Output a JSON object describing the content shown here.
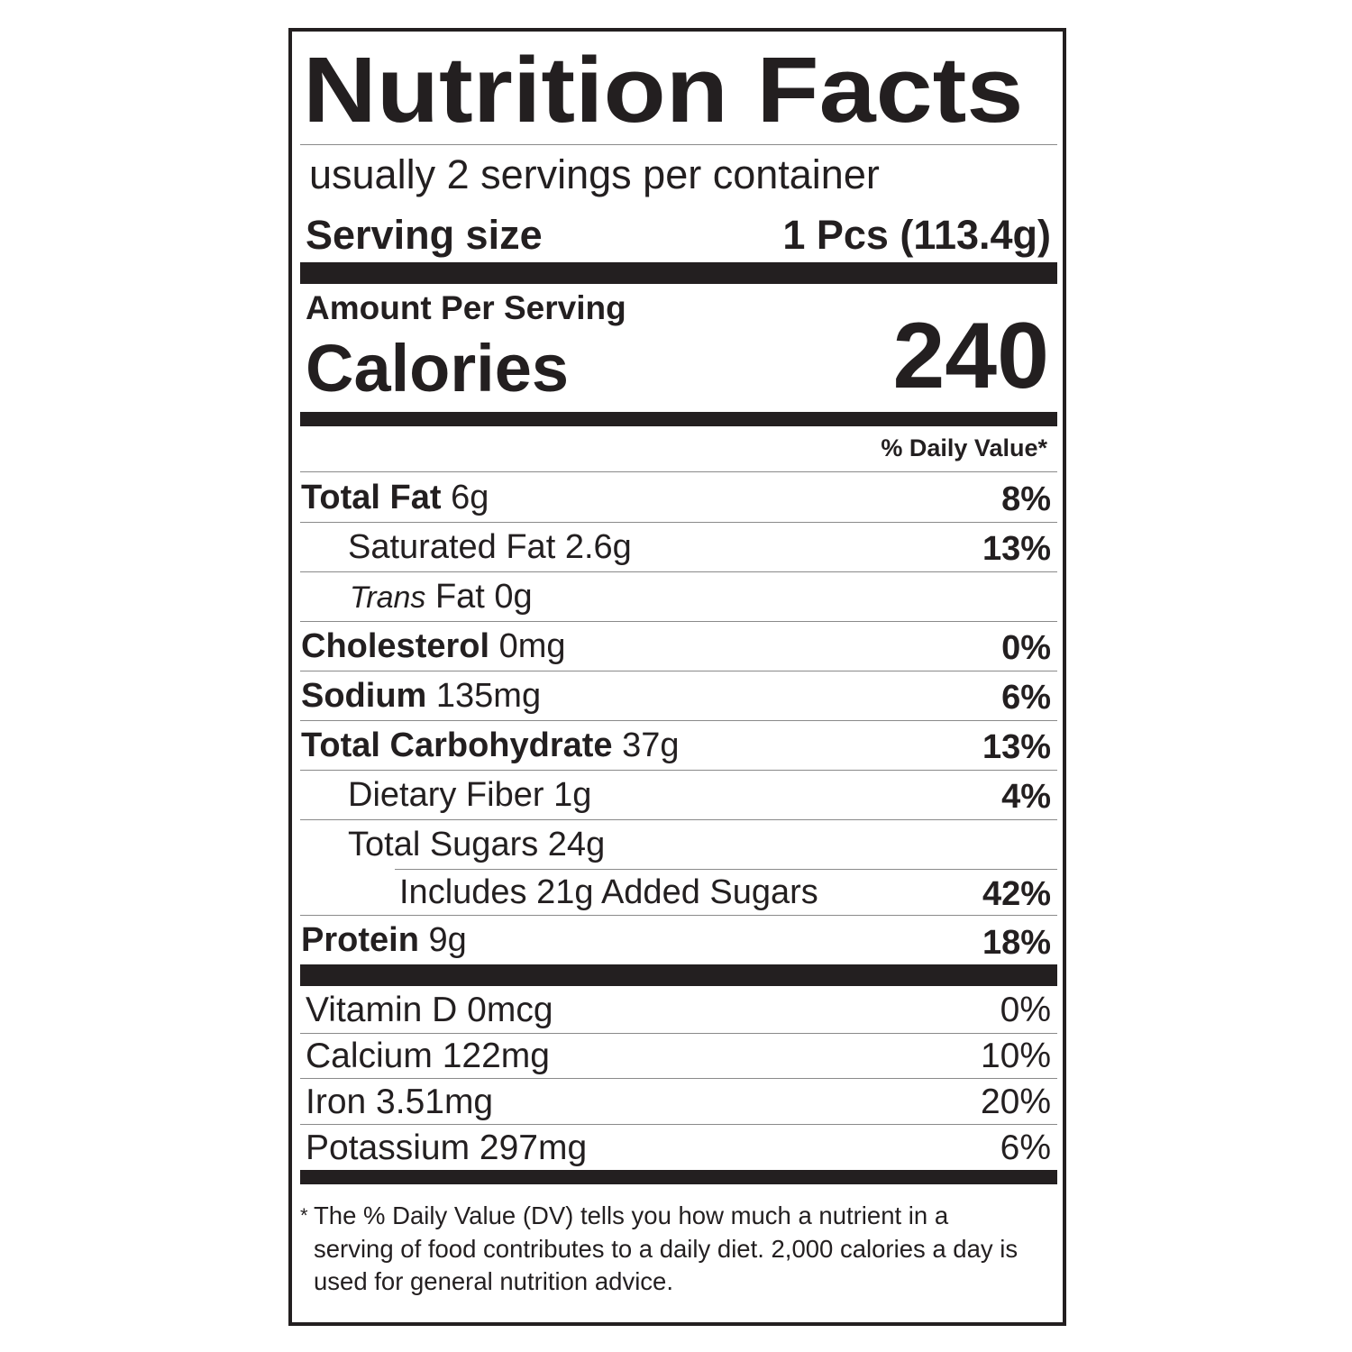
{
  "title": "Nutrition Facts",
  "servings_per_container": "usually 2 servings per container",
  "serving_size": {
    "label": "Serving size",
    "value": "1 Pcs (113.4g)"
  },
  "amount_per_serving": "Amount Per Serving",
  "calories": {
    "label": "Calories",
    "value": "240"
  },
  "daily_value_header": "% Daily Value*",
  "nutrients": [
    {
      "name": "Total Fat",
      "amount": "6g",
      "dv": "8%"
    },
    {
      "name": "Saturated Fat",
      "amount": "2.6g",
      "dv": "13%"
    },
    {
      "name": "Trans",
      "amount": "Fat 0g"
    },
    {
      "name": "Cholesterol",
      "amount": "0mg",
      "dv": "0%"
    },
    {
      "name": "Sodium",
      "amount": "135mg",
      "dv": "6%"
    },
    {
      "name": "Total Carbohydrate",
      "amount": "37g",
      "dv": "13%"
    },
    {
      "name": "Dietary Fiber",
      "amount": "1g",
      "dv": "4%"
    },
    {
      "name": "Total Sugars",
      "amount": "24g"
    },
    {
      "name": "Includes 21g Added Sugars",
      "dv": "42%"
    },
    {
      "name": "Protein",
      "amount": "9g",
      "dv": "18%"
    }
  ],
  "vitamins": [
    {
      "name": "Vitamin D 0mcg",
      "dv": "0%"
    },
    {
      "name": "Calcium 122mg",
      "dv": "10%"
    },
    {
      "name": "Iron 3.51mg",
      "dv": "20%"
    },
    {
      "name": "Potassium 297mg",
      "dv": "6%"
    }
  ],
  "footnote": {
    "marker": "*",
    "text": "The % Daily Value (DV) tells you how much a nutrient in a serving of food contributes to a daily diet. 2,000 calories a day is used for general nutrition advice."
  }
}
